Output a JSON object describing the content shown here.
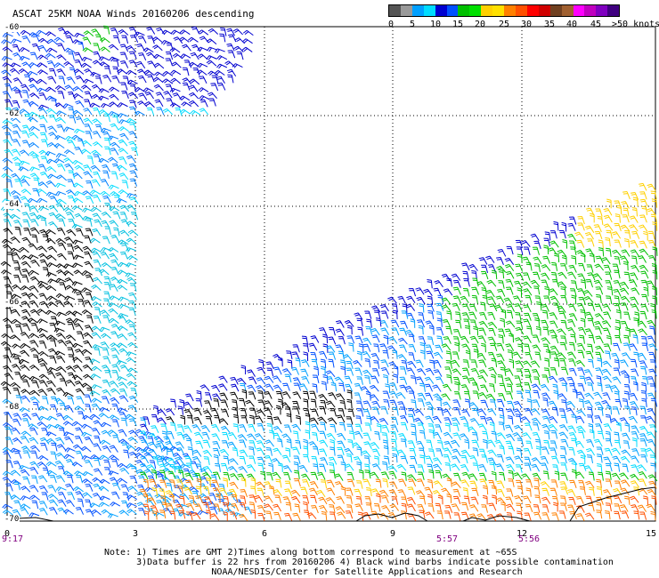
{
  "title": "ASCAT 25KM NOAA Winds 20160206 descending",
  "colorbar": {
    "colors": [
      "#555555",
      "#999999",
      "#00a0ff",
      "#00dcff",
      "#0000d0",
      "#0050ff",
      "#00c000",
      "#00e000",
      "#ffd000",
      "#ffe000",
      "#ff8000",
      "#ff5000",
      "#ff0000",
      "#d00000",
      "#704020",
      "#a06030",
      "#ff00ff",
      "#c000c0",
      "#8000c0",
      "#400080"
    ],
    "labels": [
      "0",
      "5",
      "10",
      "15",
      "20",
      "25",
      "30",
      "35",
      "40",
      "45",
      ">50 knots"
    ]
  },
  "lat_labels": [
    "-60",
    "-62",
    "-64",
    "-66",
    "-68",
    "-70"
  ],
  "lon_labels": [
    "0",
    "3",
    "6",
    "9",
    "12",
    "15"
  ],
  "time_labels": [
    "9:17",
    "5:57",
    "5:56"
  ],
  "notes": [
    "Note: 1) Times are GMT 2)Times along bottom correspond to measurement at ~65S",
    "      3)Data buffer is 22 hrs from 20160206 4) Black wind barbs indicate possible contamination",
    "                    NOAA/NESDIS/Center for Satellite Applications and Research"
  ]
}
